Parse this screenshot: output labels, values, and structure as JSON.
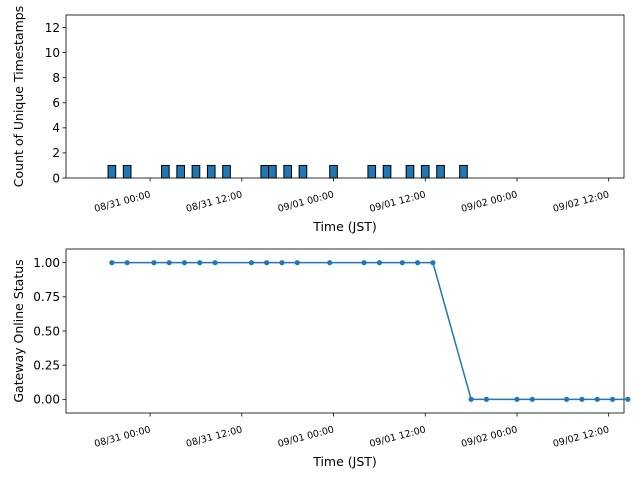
{
  "chart_data": [
    {
      "type": "bar",
      "title": "",
      "xlabel": "Time (JST)",
      "ylabel": "Count of Unique Timestamps",
      "ylim": [
        0,
        13
      ],
      "yticks": [
        0,
        2,
        4,
        6,
        8,
        10,
        12
      ],
      "xticks": [
        "08/31 00:00",
        "08/31 12:00",
        "09/01 00:00",
        "09/01 12:00",
        "09/02 00:00",
        "09/02 12:00"
      ],
      "xlim": [
        "08/30 13:00",
        "09/02 14:00"
      ],
      "bar_width_hours": 1,
      "bar_color": "#1f77b4",
      "bar_edge": "#000000",
      "bars": [
        {
          "time": "08/30 19:00",
          "value": 1
        },
        {
          "time": "08/30 21:00",
          "value": 1
        },
        {
          "time": "08/31 02:00",
          "value": 1
        },
        {
          "time": "08/31 04:00",
          "value": 1
        },
        {
          "time": "08/31 06:00",
          "value": 1
        },
        {
          "time": "08/31 08:00",
          "value": 1
        },
        {
          "time": "08/31 10:00",
          "value": 1
        },
        {
          "time": "08/31 15:00",
          "value": 1
        },
        {
          "time": "08/31 16:00",
          "value": 1
        },
        {
          "time": "08/31 18:00",
          "value": 1
        },
        {
          "time": "08/31 20:00",
          "value": 1
        },
        {
          "time": "09/01 00:00",
          "value": 1
        },
        {
          "time": "09/01 05:00",
          "value": 1
        },
        {
          "time": "09/01 07:00",
          "value": 1
        },
        {
          "time": "09/01 10:00",
          "value": 1
        },
        {
          "time": "09/01 12:00",
          "value": 1
        },
        {
          "time": "09/01 14:00",
          "value": 1
        },
        {
          "time": "09/01 17:00",
          "value": 1
        }
      ]
    },
    {
      "type": "line",
      "title": "",
      "xlabel": "Time (JST)",
      "ylabel": "Gateway Online Status",
      "ylim": [
        -0.1,
        1.1
      ],
      "yticks": [
        0.0,
        0.25,
        0.5,
        0.75,
        1.0
      ],
      "ytick_labels": [
        "0.00",
        "0.25",
        "0.50",
        "0.75",
        "1.00"
      ],
      "xticks": [
        "08/31 00:00",
        "08/31 12:00",
        "09/01 00:00",
        "09/01 12:00",
        "09/02 00:00",
        "09/02 12:00"
      ],
      "xlim": [
        "08/30 13:00",
        "09/02 14:00"
      ],
      "line_color": "#1f77b4",
      "series": [
        {
          "points": [
            {
              "time": "08/30 19:00",
              "value": 1
            },
            {
              "time": "08/30 21:00",
              "value": 1
            },
            {
              "time": "08/31 00:30",
              "value": 1
            },
            {
              "time": "08/31 02:30",
              "value": 1
            },
            {
              "time": "08/31 04:30",
              "value": 1
            },
            {
              "time": "08/31 06:30",
              "value": 1
            },
            {
              "time": "08/31 08:30",
              "value": 1
            },
            {
              "time": "08/31 13:15",
              "value": 1
            },
            {
              "time": "08/31 15:15",
              "value": 1
            },
            {
              "time": "08/31 17:15",
              "value": 1
            },
            {
              "time": "08/31 19:15",
              "value": 1
            },
            {
              "time": "08/31 23:30",
              "value": 1
            },
            {
              "time": "09/01 04:00",
              "value": 1
            },
            {
              "time": "09/01 06:00",
              "value": 1
            },
            {
              "time": "09/01 09:00",
              "value": 1
            },
            {
              "time": "09/01 11:00",
              "value": 1
            },
            {
              "time": "09/01 13:00",
              "value": 1
            },
            {
              "time": "09/01 18:00",
              "value": 0
            },
            {
              "time": "09/01 20:00",
              "value": 0
            },
            {
              "time": "09/02 00:00",
              "value": 0
            },
            {
              "time": "09/02 02:00",
              "value": 0
            },
            {
              "time": "09/02 06:30",
              "value": 0
            },
            {
              "time": "09/02 08:30",
              "value": 0
            },
            {
              "time": "09/02 10:30",
              "value": 0
            },
            {
              "time": "09/02 12:30",
              "value": 0
            },
            {
              "time": "09/02 14:30",
              "value": 0
            }
          ]
        }
      ]
    }
  ]
}
